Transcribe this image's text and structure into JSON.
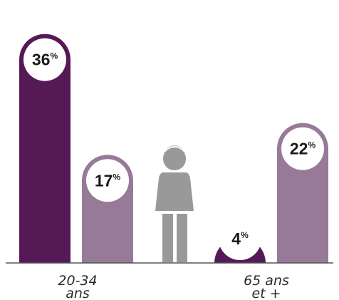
{
  "chart_data": {
    "type": "bar",
    "title": "",
    "xlabel": "",
    "ylabel": "",
    "ylim": [
      0,
      40
    ],
    "unit": "%",
    "grid": false,
    "legend": "none",
    "categories": [
      {
        "lines": [
          "20-34",
          "ans"
        ]
      },
      {
        "lines": [
          "65 ans",
          "et +"
        ]
      }
    ],
    "series": [
      {
        "color": "#551a56",
        "values": [
          36,
          4
        ]
      },
      {
        "color": "#977a97",
        "values": [
          17,
          22
        ]
      }
    ],
    "figure": {
      "type": "person-icon",
      "color": "#999999"
    }
  }
}
